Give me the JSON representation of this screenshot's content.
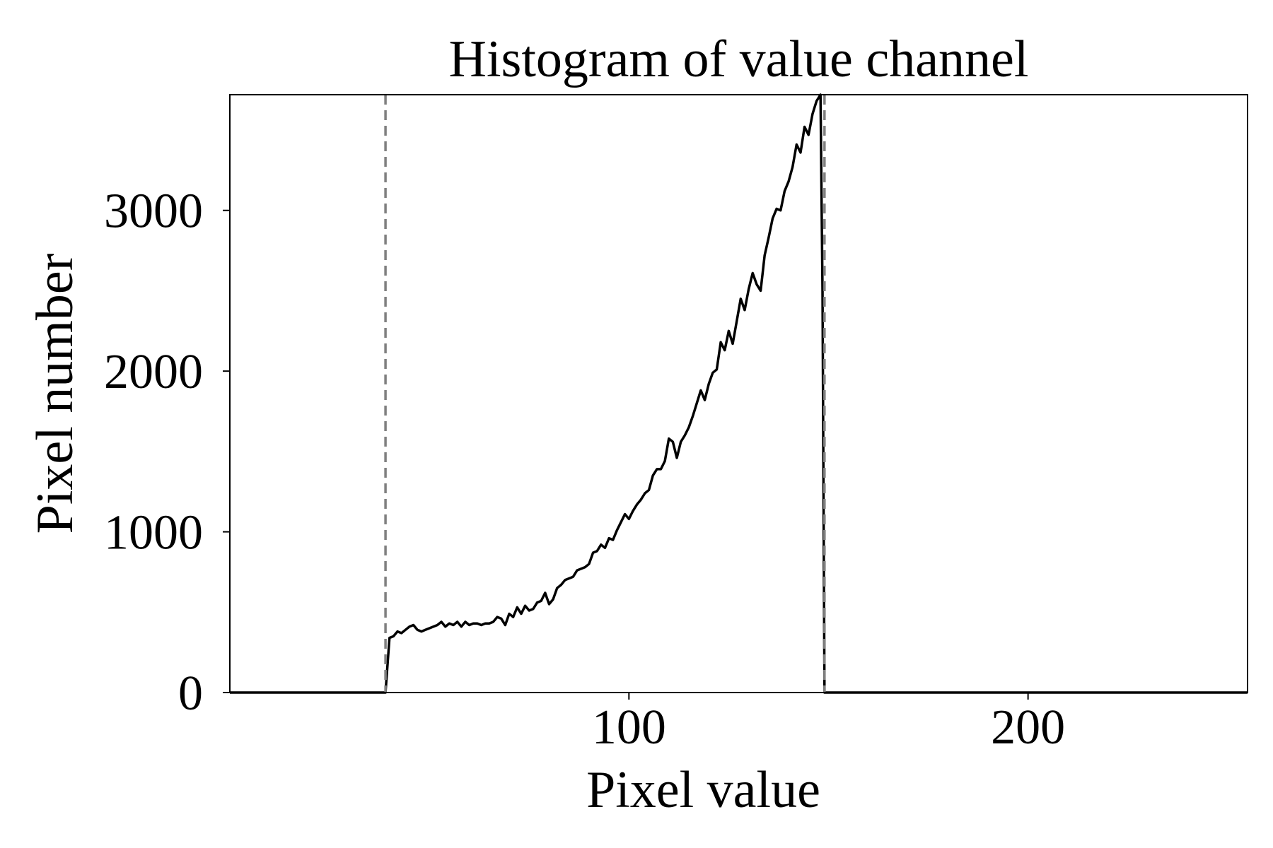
{
  "chart_data": {
    "type": "line",
    "title": "Histogram of value channel",
    "xlabel": "Pixel value",
    "ylabel": "Pixel number",
    "xlim": [
      0,
      255
    ],
    "ylim": [
      0,
      3720
    ],
    "xticks": [
      100,
      200
    ],
    "yticks": [
      0,
      1000,
      2000,
      3000
    ],
    "grid": false,
    "legend": "none",
    "line_color": "#000000",
    "threshold_color": "#808080",
    "thresholds": [
      39,
      149
    ],
    "series": [
      {
        "x": [
          0,
          39,
          40,
          41,
          42,
          43,
          44,
          45,
          46,
          47,
          48,
          49,
          50,
          51,
          52,
          53,
          54,
          55,
          56,
          57,
          58,
          59,
          60,
          61,
          62,
          63,
          64,
          65,
          66,
          67,
          68,
          69,
          70,
          71,
          72,
          73,
          74,
          75,
          76,
          77,
          78,
          79,
          80,
          81,
          82,
          83,
          84,
          85,
          86,
          87,
          88,
          89,
          90,
          91,
          92,
          93,
          94,
          95,
          96,
          97,
          98,
          99,
          100,
          101,
          102,
          103,
          104,
          105,
          106,
          107,
          108,
          109,
          110,
          111,
          112,
          113,
          114,
          115,
          116,
          117,
          118,
          119,
          120,
          121,
          122,
          123,
          124,
          125,
          126,
          127,
          128,
          129,
          130,
          131,
          132,
          133,
          134,
          135,
          136,
          137,
          138,
          139,
          140,
          141,
          142,
          143,
          144,
          145,
          146,
          147,
          148,
          148.5,
          149,
          150,
          255
        ],
        "y": [
          0,
          0,
          340,
          350,
          380,
          370,
          390,
          410,
          420,
          390,
          380,
          390,
          400,
          410,
          420,
          440,
          410,
          430,
          420,
          440,
          410,
          440,
          420,
          430,
          430,
          420,
          430,
          430,
          440,
          470,
          460,
          420,
          490,
          470,
          530,
          490,
          540,
          510,
          520,
          560,
          570,
          620,
          550,
          580,
          650,
          670,
          700,
          710,
          720,
          760,
          770,
          780,
          800,
          870,
          880,
          920,
          900,
          960,
          950,
          1010,
          1060,
          1110,
          1080,
          1130,
          1170,
          1200,
          1240,
          1260,
          1350,
          1390,
          1390,
          1440,
          1580,
          1560,
          1460,
          1560,
          1600,
          1650,
          1720,
          1800,
          1880,
          1820,
          1920,
          1990,
          2010,
          2180,
          2130,
          2250,
          2170,
          2310,
          2450,
          2380,
          2510,
          2610,
          2540,
          2500,
          2720,
          2830,
          2950,
          3010,
          3000,
          3120,
          3180,
          3270,
          3410,
          3360,
          3520,
          3470,
          3600,
          3680,
          3720,
          2500,
          0,
          0,
          0
        ]
      }
    ]
  }
}
